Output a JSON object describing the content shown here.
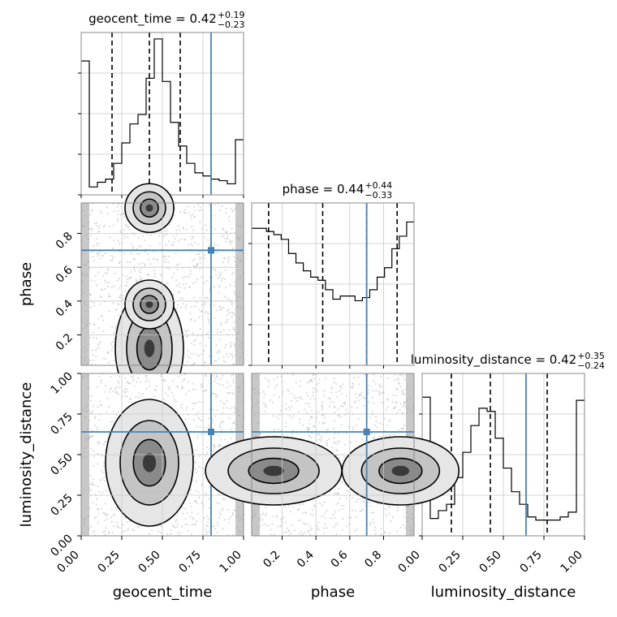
{
  "chart_data": {
    "type": "corner",
    "parameters": [
      "geocent_time",
      "phase",
      "luminosity_distance"
    ],
    "axis_labels": {
      "x": [
        "geocent_time",
        "phase",
        "luminosity_distance"
      ],
      "y": [
        "phase",
        "luminosity_distance"
      ]
    },
    "ranges": [
      [
        0.0,
        1.0
      ],
      [
        0.02,
        0.98
      ],
      [
        0.0,
        1.0
      ]
    ],
    "truths": [
      0.8,
      0.7,
      0.64
    ],
    "truth_color": "#4682b4",
    "grid": true,
    "diagonal": [
      {
        "parameter": "geocent_time",
        "title_main": "geocent_time = 0.42",
        "title_sup": "+0.19",
        "title_sub": "−0.23",
        "quantiles": [
          0.19,
          0.42,
          0.61
        ],
        "hist_heights": [
          0.85,
          0.05,
          0.08,
          0.1,
          0.2,
          0.33,
          0.45,
          0.51,
          0.74,
          0.99,
          0.72,
          0.46,
          0.31,
          0.2,
          0.14,
          0.12,
          0.1,
          0.09,
          0.07,
          0.35
        ]
      },
      {
        "parameter": "phase",
        "title_main": "phase = 0.44",
        "title_sup": "+0.44",
        "title_sub": "−0.33",
        "quantiles": [
          0.12,
          0.44,
          0.7,
          0.88
        ],
        "hist_heights": [
          0.87,
          0.87,
          0.85,
          0.83,
          0.8,
          0.71,
          0.65,
          0.6,
          0.56,
          0.54,
          0.48,
          0.42,
          0.44,
          0.44,
          0.41,
          0.43,
          0.48,
          0.56,
          0.62,
          0.74,
          0.82,
          0.91
        ]
      },
      {
        "parameter": "luminosity_distance",
        "title_main": "luminosity_distance = 0.42",
        "title_sup": "+0.35",
        "title_sub": "−0.24",
        "quantiles": [
          0.18,
          0.42,
          0.77
        ],
        "hist_heights": [
          0.88,
          0.11,
          0.16,
          0.2,
          0.37,
          0.53,
          0.7,
          0.81,
          0.79,
          0.62,
          0.43,
          0.28,
          0.2,
          0.12,
          0.1,
          0.1,
          0.1,
          0.12,
          0.15,
          0.86
        ]
      }
    ],
    "scatter_panels": [
      {
        "x": "geocent_time",
        "y": "phase",
        "density_peaks": [
          {
            "x": 0.42,
            "y": 0.95,
            "w": 0.05,
            "h": 0.05
          },
          {
            "x": 0.42,
            "y": 0.12,
            "w": 0.07,
            "h": 0.12
          },
          {
            "x": 0.42,
            "y": 0.38,
            "w": 0.05,
            "h": 0.05
          }
        ]
      },
      {
        "x": "geocent_time",
        "y": "luminosity_distance",
        "density_peaks": [
          {
            "x": 0.42,
            "y": 0.45,
            "w": 0.09,
            "h": 0.13
          }
        ]
      },
      {
        "x": "phase",
        "y": "luminosity_distance",
        "density_peaks": [
          {
            "x": 0.15,
            "y": 0.4,
            "w": 0.14,
            "h": 0.07
          },
          {
            "x": 0.9,
            "y": 0.4,
            "w": 0.12,
            "h": 0.07
          }
        ]
      }
    ],
    "tick_labels": {
      "geocent_time_x": [
        "0.00",
        "0.25",
        "0.50",
        "0.75",
        "1.00"
      ],
      "phase_x": [
        "0.2",
        "0.4",
        "0.6",
        "0.8"
      ],
      "luminosity_distance_x": [
        "0.00",
        "0.25",
        "0.50",
        "0.75",
        "1.00"
      ],
      "phase_y": [
        "0.2",
        "0.4",
        "0.6",
        "0.8"
      ],
      "luminosity_distance_y": [
        "0.00",
        "0.25",
        "0.50",
        "0.75",
        "1.00"
      ]
    }
  }
}
